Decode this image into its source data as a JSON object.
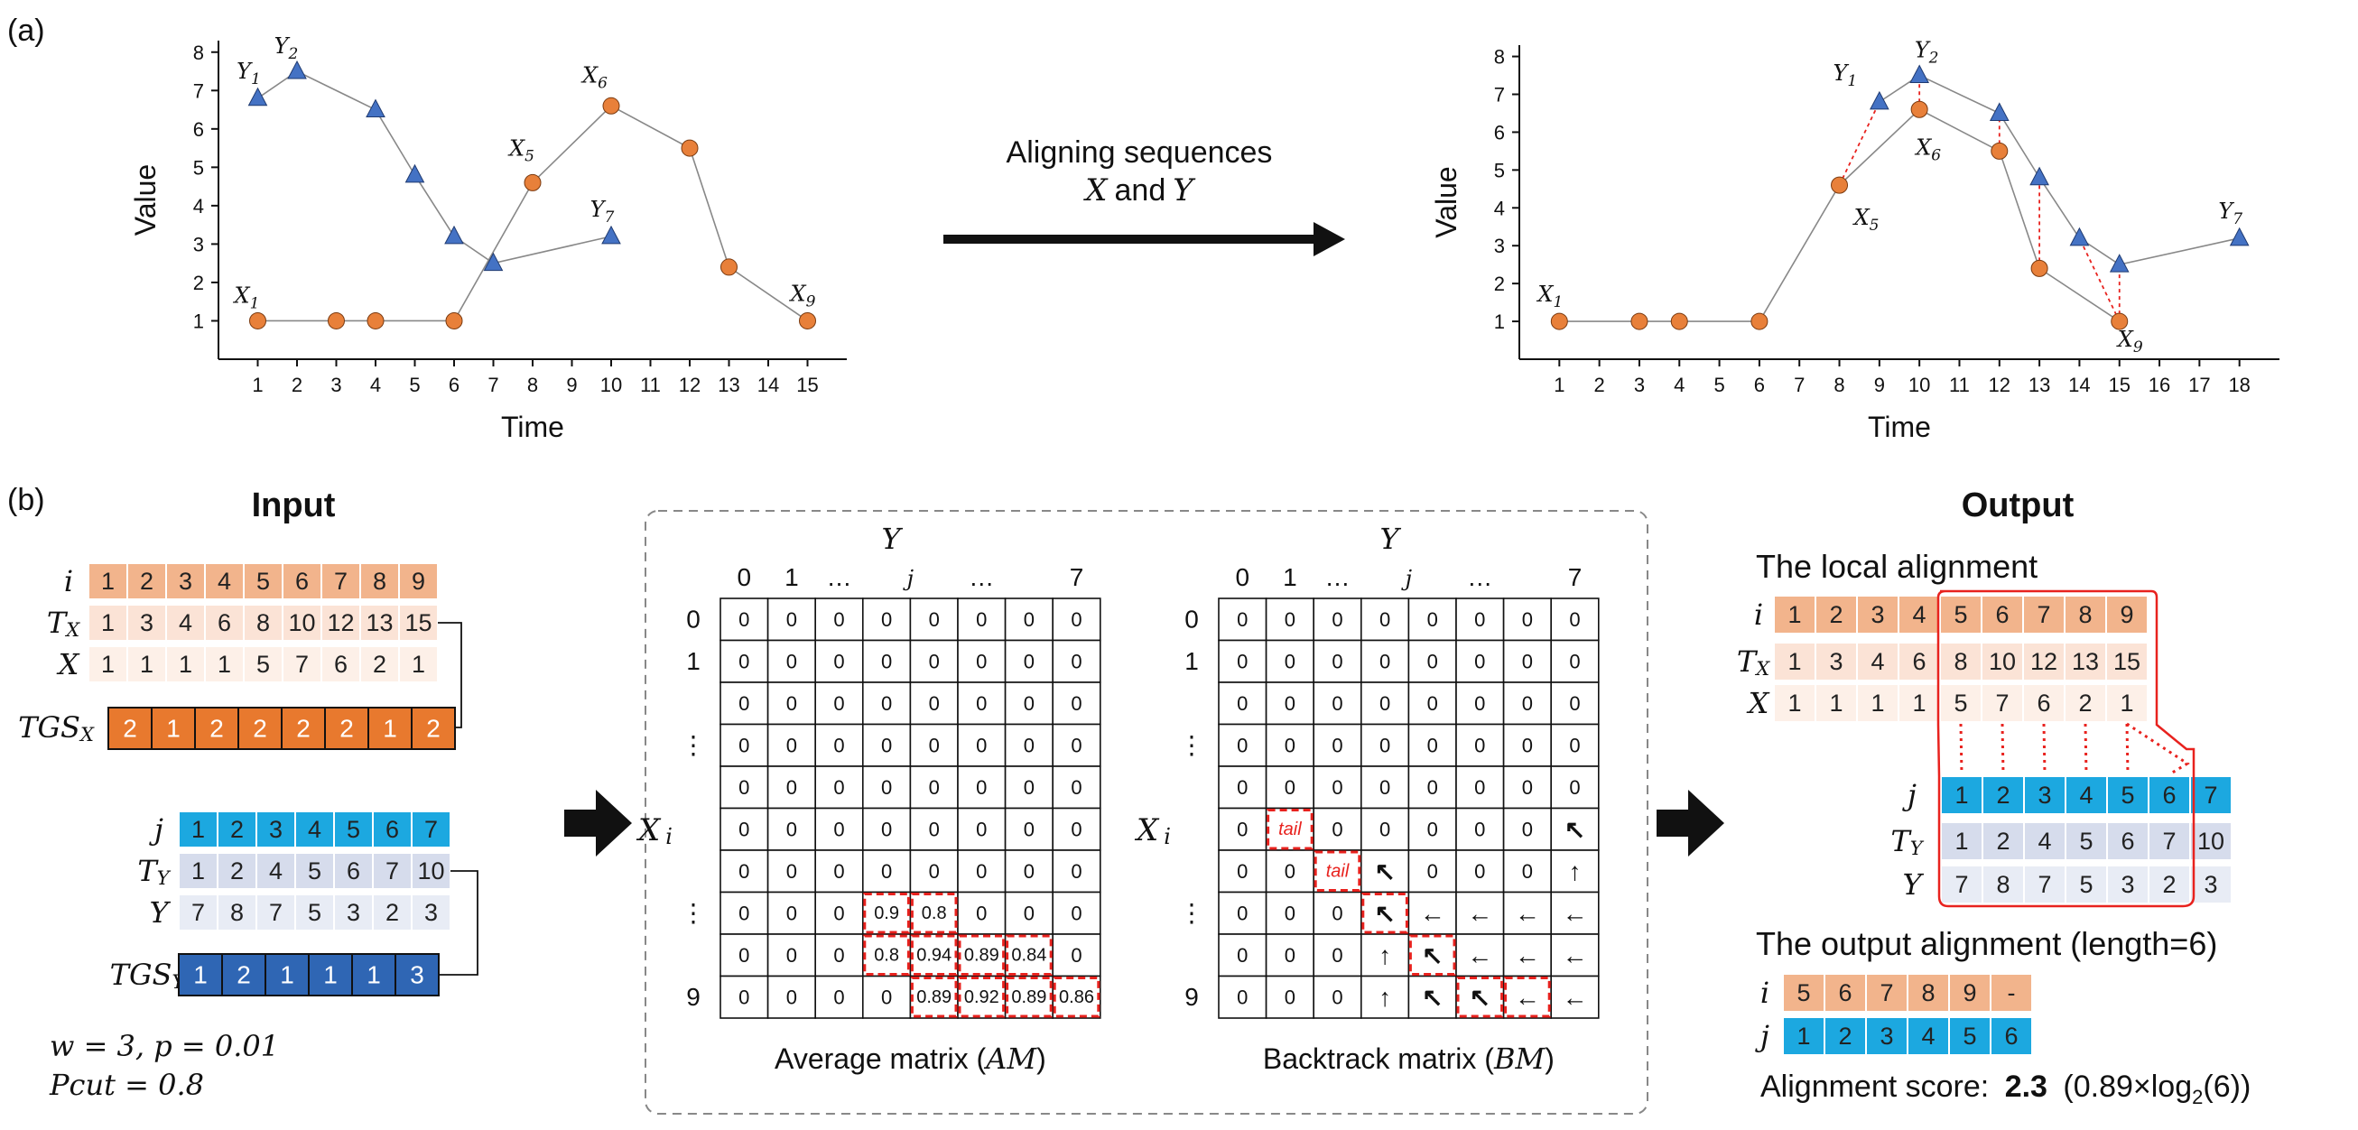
{
  "colors": {
    "x_series": "#E8803A",
    "y_series": "#4472C4",
    "orange_cells": "#F2B48C",
    "orange_light": "#FBE3D6",
    "orange_lighter": "#FDF0E8",
    "blue_cells": "#1CA8E0",
    "blue_light": "#D6DCEC",
    "blue_lighter": "#E8ECF5",
    "tgs_x": "#E8792E",
    "tgs_y": "#2F66B4",
    "highlight": "#E8221E"
  },
  "panel_a": {
    "label": "(a)",
    "arrow_text_line1": "Aligning sequences",
    "arrow_text_line2_pre": "",
    "arrow_text_x": "X",
    "arrow_text_and": "and",
    "arrow_text_y": "Y",
    "left_chart": {
      "ylabel": "Value",
      "xlabel": "Time"
    },
    "right_chart": {
      "ylabel": "Value",
      "xlabel": "Time"
    }
  },
  "chart_data": [
    {
      "type": "line",
      "xlabel": "Time",
      "ylabel": "Value",
      "xlim": [
        1,
        15
      ],
      "ylim": [
        0,
        8
      ],
      "x_ticks": [
        1,
        2,
        3,
        4,
        5,
        6,
        7,
        8,
        9,
        10,
        11,
        12,
        13,
        14,
        15
      ],
      "y_ticks": [
        1,
        2,
        3,
        4,
        5,
        6,
        7,
        8
      ],
      "series": [
        {
          "name": "X",
          "marker": "circle",
          "x": [
            1,
            3,
            4,
            6,
            8,
            10,
            12,
            13,
            15
          ],
          "y": [
            1,
            1,
            1,
            1,
            4.6,
            6.6,
            5.5,
            2.4,
            1
          ]
        },
        {
          "name": "Y",
          "marker": "triangle",
          "x": [
            1,
            2,
            4,
            5,
            6,
            7,
            10
          ],
          "y": [
            6.8,
            7.5,
            6.5,
            4.8,
            3.2,
            2.5,
            3.2
          ]
        }
      ],
      "point_labels": [
        {
          "series": "X",
          "index": 0,
          "base": "X",
          "sub": "1"
        },
        {
          "series": "X",
          "index": 4,
          "base": "X",
          "sub": "5"
        },
        {
          "series": "X",
          "index": 5,
          "base": "X",
          "sub": "6"
        },
        {
          "series": "X",
          "index": 8,
          "base": "X",
          "sub": "9"
        },
        {
          "series": "Y",
          "index": 0,
          "base": "Y",
          "sub": "1"
        },
        {
          "series": "Y",
          "index": 1,
          "base": "Y",
          "sub": "2"
        },
        {
          "series": "Y",
          "index": 6,
          "base": "Y",
          "sub": "7"
        }
      ]
    },
    {
      "type": "line",
      "xlabel": "Time",
      "ylabel": "Value",
      "xlim": [
        1,
        18
      ],
      "ylim": [
        0,
        8
      ],
      "x_ticks": [
        1,
        2,
        3,
        4,
        5,
        6,
        7,
        8,
        9,
        10,
        11,
        12,
        13,
        14,
        15,
        16,
        17,
        18
      ],
      "y_ticks": [
        1,
        2,
        3,
        4,
        5,
        6,
        7,
        8
      ],
      "series": [
        {
          "name": "X",
          "marker": "circle",
          "x": [
            1,
            3,
            4,
            6,
            8,
            10,
            12,
            13,
            15
          ],
          "y": [
            1,
            1,
            1,
            1,
            4.6,
            6.6,
            5.5,
            2.4,
            1
          ]
        },
        {
          "name": "Y",
          "marker": "triangle",
          "x": [
            9,
            10,
            12,
            13,
            14,
            15,
            18
          ],
          "y": [
            6.8,
            7.5,
            6.5,
            4.8,
            3.2,
            2.5,
            3.2
          ]
        }
      ],
      "alignment_links": [
        [
          4,
          0
        ],
        [
          5,
          1
        ],
        [
          6,
          2
        ],
        [
          7,
          3
        ],
        [
          8,
          4
        ],
        [
          8,
          5
        ]
      ],
      "point_labels": [
        {
          "series": "X",
          "index": 0,
          "base": "X",
          "sub": "1"
        },
        {
          "series": "X",
          "index": 4,
          "base": "X",
          "sub": "5"
        },
        {
          "series": "X",
          "index": 5,
          "base": "X",
          "sub": "6"
        },
        {
          "series": "X",
          "index": 8,
          "base": "X",
          "sub": "9"
        },
        {
          "series": "Y",
          "index": 0,
          "base": "Y",
          "sub": "1"
        },
        {
          "series": "Y",
          "index": 1,
          "base": "Y",
          "sub": "2"
        },
        {
          "series": "Y",
          "index": 6,
          "base": "Y",
          "sub": "7"
        }
      ]
    }
  ],
  "panel_b": {
    "label": "(b)",
    "input": {
      "title": "Input",
      "x_rows": {
        "i": [
          "1",
          "2",
          "3",
          "4",
          "5",
          "6",
          "7",
          "8",
          "9"
        ],
        "tx": [
          "1",
          "3",
          "4",
          "6",
          "8",
          "10",
          "12",
          "13",
          "15"
        ],
        "x": [
          "1",
          "1",
          "1",
          "1",
          "5",
          "7",
          "6",
          "2",
          "1"
        ]
      },
      "tgs_x": [
        "2",
        "1",
        "2",
        "2",
        "2",
        "2",
        "1",
        "2"
      ],
      "y_rows": {
        "j": [
          "1",
          "2",
          "3",
          "4",
          "5",
          "6",
          "7"
        ],
        "ty": [
          "1",
          "2",
          "4",
          "5",
          "6",
          "7",
          "10"
        ],
        "y": [
          "7",
          "8",
          "7",
          "5",
          "3",
          "2",
          "3"
        ]
      },
      "tgs_y": [
        "1",
        "2",
        "1",
        "1",
        "1",
        "3"
      ],
      "labels": {
        "i": "i",
        "tx_base": "T",
        "tx_sub": "X",
        "x": "X",
        "tgs_x_base": "TGS",
        "tgs_x_sub": "X",
        "j": "j",
        "ty_base": "T",
        "ty_sub": "Y",
        "y": "Y",
        "tgs_y_base": "TGS",
        "tgs_y_sub": "Y"
      },
      "params_line1": "w = 3, p = 0.01",
      "params_line2": "Pcut = 0.8"
    },
    "matrices": {
      "col_axis_label": "Y",
      "row_axis_label": "X",
      "row_axis_sub": "i",
      "col_headers": [
        "0",
        "1",
        "…",
        "j",
        "…",
        "7"
      ],
      "row_headers": [
        "0",
        "1",
        "",
        "⋮",
        "",
        "",
        "",
        "⋮",
        "",
        "9"
      ],
      "average_matrix": {
        "caption_pre": "Average matrix (",
        "caption_var": "AM",
        "caption_post": ")",
        "cells": [
          [
            "0",
            "0",
            "0",
            "0",
            "0",
            "0",
            "0",
            "0"
          ],
          [
            "0",
            "0",
            "0",
            "0",
            "0",
            "0",
            "0",
            "0"
          ],
          [
            "0",
            "0",
            "0",
            "0",
            "0",
            "0",
            "0",
            "0"
          ],
          [
            "0",
            "0",
            "0",
            "0",
            "0",
            "0",
            "0",
            "0"
          ],
          [
            "0",
            "0",
            "0",
            "0",
            "0",
            "0",
            "0",
            "0"
          ],
          [
            "0",
            "0",
            "0",
            "0",
            "0",
            "0",
            "0",
            "0"
          ],
          [
            "0",
            "0",
            "0",
            "0",
            "0",
            "0",
            "0",
            "0"
          ],
          [
            "0",
            "0",
            "0",
            "0.9",
            "0.8",
            "0",
            "0",
            "0"
          ],
          [
            "0",
            "0",
            "0",
            "0.8",
            "0.94",
            "0.89",
            "0.84",
            "0"
          ],
          [
            "0",
            "0",
            "0",
            "0",
            "0.89",
            "0.92",
            "0.89",
            "0.86"
          ]
        ],
        "highlighted": [
          [
            7,
            3
          ],
          [
            7,
            4
          ],
          [
            8,
            3
          ],
          [
            8,
            4
          ],
          [
            8,
            5
          ],
          [
            8,
            6
          ],
          [
            9,
            4
          ],
          [
            9,
            5
          ],
          [
            9,
            6
          ],
          [
            9,
            7
          ]
        ]
      },
      "backtrack_matrix": {
        "caption_pre": "Backtrack matrix (",
        "caption_var": "BM",
        "caption_post": ")",
        "cells": [
          [
            "0",
            "0",
            "0",
            "0",
            "0",
            "0",
            "0",
            "0"
          ],
          [
            "0",
            "0",
            "0",
            "0",
            "0",
            "0",
            "0",
            "0"
          ],
          [
            "0",
            "0",
            "0",
            "0",
            "0",
            "0",
            "0",
            "0"
          ],
          [
            "0",
            "0",
            "0",
            "0",
            "0",
            "0",
            "0",
            "0"
          ],
          [
            "0",
            "0",
            "0",
            "0",
            "0",
            "0",
            "0",
            "0"
          ],
          [
            "0",
            "tail",
            "0",
            "0",
            "0",
            "0",
            "0",
            "↖"
          ],
          [
            "0",
            "0",
            "tail",
            "↖",
            "0",
            "0",
            "0",
            "↑"
          ],
          [
            "0",
            "0",
            "0",
            "↖",
            "←",
            "←",
            "←",
            "←"
          ],
          [
            "0",
            "0",
            "0",
            "↑",
            "↖",
            "←",
            "←",
            "←"
          ],
          [
            "0",
            "0",
            "0",
            "↑",
            "↖",
            "↖",
            "←",
            "←"
          ]
        ],
        "red_cells": [
          [
            5,
            1
          ],
          [
            6,
            2
          ],
          [
            7,
            3
          ],
          [
            8,
            4
          ],
          [
            9,
            5
          ],
          [
            9,
            6
          ]
        ],
        "highlighted": [
          [
            5,
            1
          ],
          [
            6,
            2
          ],
          [
            7,
            3
          ],
          [
            8,
            4
          ],
          [
            9,
            5
          ],
          [
            9,
            6
          ]
        ]
      }
    },
    "output": {
      "title": "Output",
      "local_alignment_title": "The local alignment",
      "x_rows": {
        "i": [
          "1",
          "2",
          "3",
          "4",
          "5",
          "6",
          "7",
          "8",
          "9"
        ],
        "tx": [
          "1",
          "3",
          "4",
          "6",
          "8",
          "10",
          "12",
          "13",
          "15"
        ],
        "x": [
          "1",
          "1",
          "1",
          "1",
          "5",
          "7",
          "6",
          "2",
          "1"
        ]
      },
      "y_rows": {
        "j": [
          "1",
          "2",
          "3",
          "4",
          "5",
          "6",
          "7"
        ],
        "ty": [
          "1",
          "2",
          "4",
          "5",
          "6",
          "7",
          "10"
        ],
        "y": [
          "7",
          "8",
          "7",
          "5",
          "3",
          "2",
          "3"
        ]
      },
      "output_alignment_title": "The output alignment (length=6)",
      "out_i": [
        "5",
        "6",
        "7",
        "8",
        "9",
        "-"
      ],
      "out_j": [
        "1",
        "2",
        "3",
        "4",
        "5",
        "6"
      ],
      "score_label": "Alignment score:",
      "score_value": "2.3",
      "score_formula_pre": "(0.89×log",
      "score_formula_sub": "2",
      "score_formula_post": "(6))"
    }
  }
}
